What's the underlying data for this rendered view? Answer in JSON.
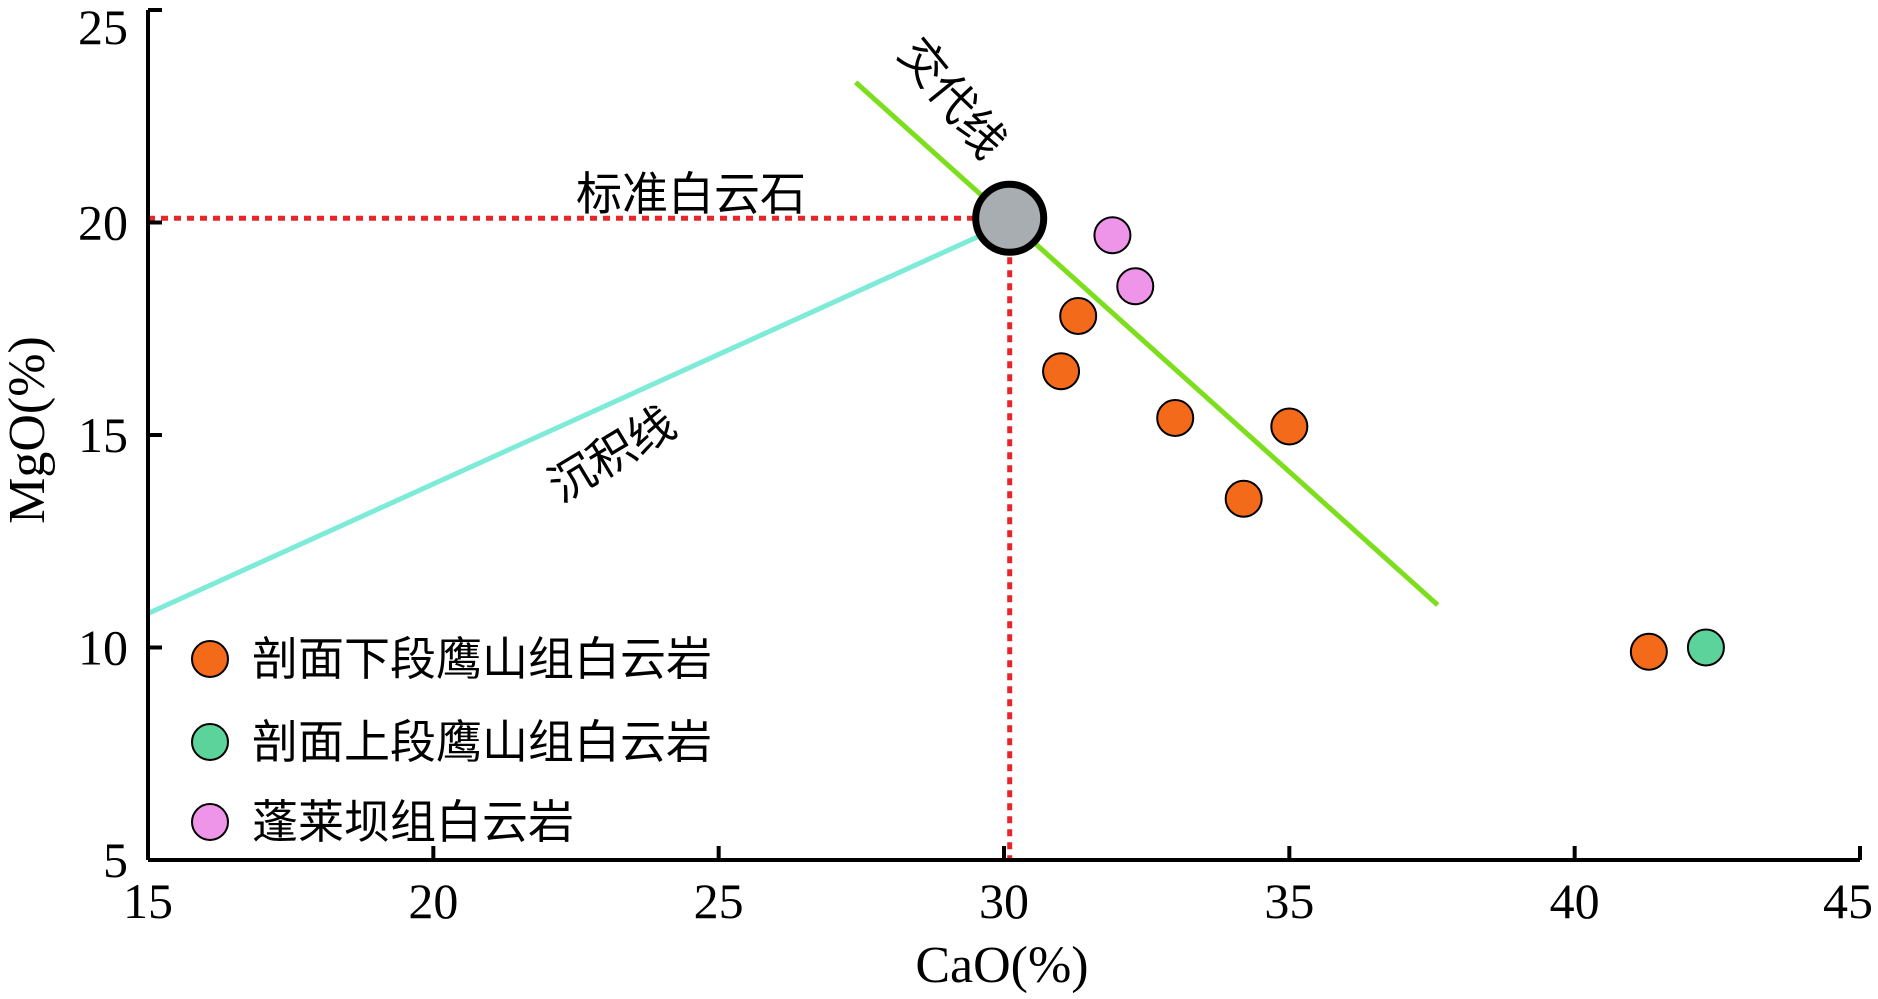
{
  "colors": {
    "orange": "#F46A1B",
    "green": "#5CD39B",
    "pink": "#EE94E9",
    "standard_fill": "#A7ADB1",
    "replacement_line": "#7DDE1E",
    "sedimentary_line": "#7DEBD8",
    "reference_dash": "#E8262A"
  },
  "chart_data": {
    "type": "scatter",
    "xlabel": "CaO(%)",
    "ylabel": "MgO(%)",
    "xlim": [
      15,
      45
    ],
    "ylim": [
      5,
      25
    ],
    "xticks": [
      "15",
      "20",
      "25",
      "30",
      "35",
      "40",
      "45"
    ],
    "yticks": [
      "5",
      "10",
      "15",
      "20",
      "25"
    ],
    "grid": false,
    "legend_position": "bottom-left",
    "series": [
      {
        "name": "剖面下段鹰山组白云岩",
        "color": "orange",
        "points": [
          {
            "x": 31.3,
            "y": 17.8
          },
          {
            "x": 31.0,
            "y": 16.5
          },
          {
            "x": 33.0,
            "y": 15.4
          },
          {
            "x": 35.0,
            "y": 15.2
          },
          {
            "x": 34.2,
            "y": 13.5
          },
          {
            "x": 41.3,
            "y": 9.9
          }
        ]
      },
      {
        "name": "剖面上段鹰山组白云岩",
        "color": "green",
        "points": [
          {
            "x": 42.3,
            "y": 10.0
          }
        ]
      },
      {
        "name": "蓬莱坝组白云岩",
        "color": "pink",
        "points": [
          {
            "x": 31.9,
            "y": 19.7
          },
          {
            "x": 32.3,
            "y": 18.5
          }
        ]
      }
    ],
    "standard_point": {
      "label": "标准白云石",
      "x": 30.1,
      "y": 20.1
    },
    "reference_lines": [
      {
        "label": "交代线",
        "color": "replacement_line",
        "from": {
          "x": 27.4,
          "y": 23.3
        },
        "to": {
          "x": 37.6,
          "y": 11.0
        }
      },
      {
        "label": "沉积线",
        "color": "sedimentary_line",
        "from": {
          "x": 15.0,
          "y": 10.8
        },
        "to": {
          "x": 29.6,
          "y": 19.7
        }
      }
    ]
  }
}
